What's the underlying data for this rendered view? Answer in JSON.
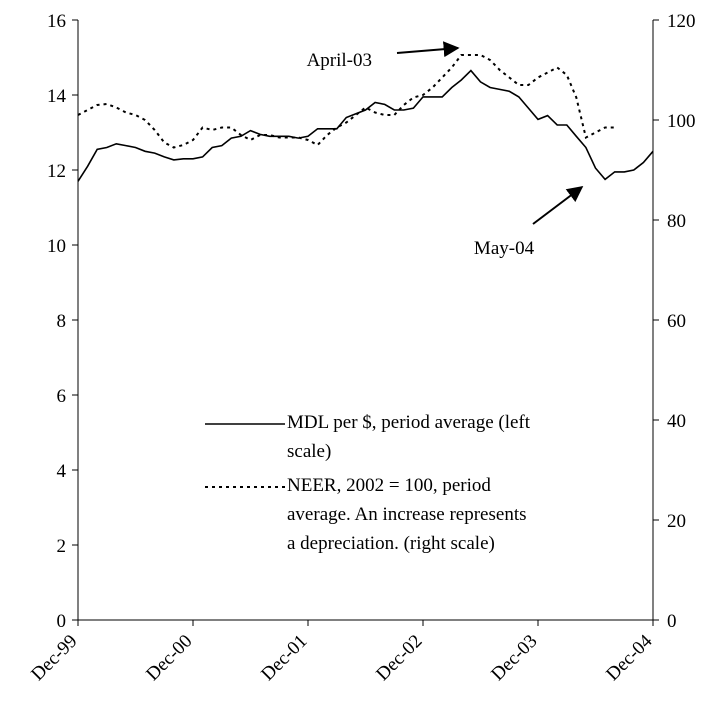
{
  "chart_data": {
    "type": "line",
    "categories": [
      "Dec-99",
      null,
      null,
      null,
      null,
      null,
      null,
      null,
      null,
      null,
      null,
      null,
      "Dec-00",
      null,
      null,
      null,
      null,
      null,
      null,
      null,
      null,
      null,
      null,
      null,
      "Dec-01",
      null,
      null,
      null,
      null,
      null,
      null,
      null,
      null,
      null,
      null,
      null,
      "Dec-02",
      null,
      null,
      null,
      null,
      null,
      null,
      null,
      null,
      null,
      null,
      null,
      "Dec-03",
      null,
      null,
      null,
      null,
      null,
      null,
      null,
      null,
      null,
      null,
      null,
      "Dec-04"
    ],
    "series": [
      {
        "name": "MDL per $, period average (left scale)",
        "color": "#000000",
        "dash": "solid",
        "values": [
          11.7,
          12.1,
          12.55,
          12.6,
          12.7,
          12.65,
          12.6,
          12.5,
          12.45,
          12.35,
          12.27,
          12.3,
          12.3,
          12.35,
          12.6,
          12.65,
          12.85,
          12.9,
          13.05,
          12.95,
          12.9,
          12.9,
          12.9,
          12.85,
          12.9,
          13.1,
          13.1,
          13.1,
          13.4,
          13.5,
          13.6,
          13.8,
          13.75,
          13.6,
          13.6,
          13.65,
          13.95,
          13.95,
          13.95,
          14.2,
          14.4,
          14.65,
          14.35,
          14.2,
          14.15,
          14.1,
          13.95,
          13.65,
          13.35,
          13.45,
          13.2,
          13.2,
          12.9,
          12.6,
          12.05,
          11.75,
          11.95,
          11.95,
          12.0,
          12.2,
          12.5
        ]
      },
      {
        "name": "NEER, 2002 = 100, period average. An increase represents a depreciation. (right scale)",
        "color": "#000000",
        "dash": "dotted",
        "axis": "y2",
        "values": [
          101,
          102,
          103,
          103.2,
          102.5,
          101.5,
          101,
          100,
          98,
          95.5,
          94.5,
          95,
          96,
          98.5,
          98,
          98.5,
          98.5,
          97,
          96,
          97,
          97,
          96.5,
          96.5,
          96.5,
          96,
          95,
          97,
          98.5,
          99.5,
          101,
          102.5,
          101.5,
          101,
          101,
          103,
          104.5,
          105,
          106.5,
          108.5,
          110.5,
          113,
          113,
          113,
          112,
          110,
          108.5,
          107,
          107,
          108.5,
          109.5,
          110.5,
          109,
          104.5,
          96.5,
          97.5,
          98.5,
          98.5,
          null,
          null,
          null,
          null
        ]
      }
    ],
    "ylim": [
      0,
      16
    ],
    "yticks": [
      0,
      2,
      4,
      6,
      8,
      10,
      12,
      14,
      16
    ],
    "y2lim": [
      0,
      120
    ],
    "y2ticks": [
      0,
      20,
      40,
      60,
      80,
      100,
      120
    ],
    "grid": false,
    "annotations": [
      "April-03",
      "May-04"
    ]
  }
}
